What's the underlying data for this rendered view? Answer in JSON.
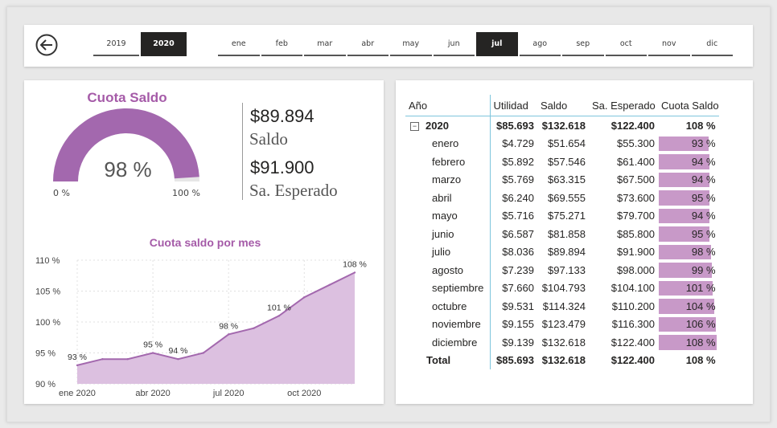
{
  "years": [
    {
      "label": "2019",
      "selected": false
    },
    {
      "label": "2020",
      "selected": true
    }
  ],
  "months": [
    {
      "label": "ene",
      "selected": false
    },
    {
      "label": "feb",
      "selected": false
    },
    {
      "label": "mar",
      "selected": false
    },
    {
      "label": "abr",
      "selected": false
    },
    {
      "label": "may",
      "selected": false
    },
    {
      "label": "jun",
      "selected": false
    },
    {
      "label": "jul",
      "selected": true
    },
    {
      "label": "ago",
      "selected": false
    },
    {
      "label": "sep",
      "selected": false
    },
    {
      "label": "oct",
      "selected": false
    },
    {
      "label": "nov",
      "selected": false
    },
    {
      "label": "dic",
      "selected": false
    }
  ],
  "gauge": {
    "title": "Cuota Saldo",
    "value_label": "98 %",
    "value": 0.98,
    "min_label": "0 %",
    "max_label": "100 %",
    "color": "#a368ae"
  },
  "kpis": [
    {
      "value": "$89.894",
      "label": "Saldo"
    },
    {
      "value": "$91.900",
      "label": "Sa. Esperado"
    }
  ],
  "chart_data": {
    "type": "area",
    "title": "Cuota saldo por mes",
    "x": [
      "2020-01",
      "2020-02",
      "2020-03",
      "2020-04",
      "2020-05",
      "2020-06",
      "2020-07",
      "2020-08",
      "2020-09",
      "2020-10",
      "2020-11",
      "2020-12"
    ],
    "values": [
      93,
      94,
      94,
      95,
      94,
      95,
      98,
      99,
      101,
      104,
      106,
      108
    ],
    "point_labels": [
      "93 %",
      "",
      "",
      "95 %",
      "94 %",
      "",
      "98 %",
      "",
      "101 %",
      "",
      "",
      "108 %"
    ],
    "ylim": [
      90,
      110
    ],
    "yticks": [
      90,
      95,
      100,
      105,
      110
    ],
    "ytick_labels": [
      "90 %",
      "95 %",
      "100 %",
      "105 %",
      "110 %"
    ],
    "xtick_labels": [
      "ene 2020",
      "abr 2020",
      "jul 2020",
      "oct 2020"
    ],
    "xtick_index": [
      0,
      3,
      6,
      9
    ],
    "grid": true,
    "line_color": "#a368ae",
    "fill_color": "#dcc0e0"
  },
  "table": {
    "headers": [
      "Año",
      "Utilidad",
      "Saldo",
      "Sa. Esperado",
      "Cuota Saldo"
    ],
    "year_row": {
      "label": "2020",
      "expand_icon": "minus-box-icon",
      "utilidad": "$85.693",
      "saldo": "$132.618",
      "esperado": "$122.400",
      "cuota": "108 %"
    },
    "rows": [
      {
        "mes": "enero",
        "utilidad": "$4.729",
        "saldo": "$51.654",
        "esperado": "$55.300",
        "cuota": "93 %",
        "pct": 93
      },
      {
        "mes": "febrero",
        "utilidad": "$5.892",
        "saldo": "$57.546",
        "esperado": "$61.400",
        "cuota": "94 %",
        "pct": 94
      },
      {
        "mes": "marzo",
        "utilidad": "$5.769",
        "saldo": "$63.315",
        "esperado": "$67.500",
        "cuota": "94 %",
        "pct": 94
      },
      {
        "mes": "abril",
        "utilidad": "$6.240",
        "saldo": "$69.555",
        "esperado": "$73.600",
        "cuota": "95 %",
        "pct": 95
      },
      {
        "mes": "mayo",
        "utilidad": "$5.716",
        "saldo": "$75.271",
        "esperado": "$79.700",
        "cuota": "94 %",
        "pct": 94
      },
      {
        "mes": "junio",
        "utilidad": "$6.587",
        "saldo": "$81.858",
        "esperado": "$85.800",
        "cuota": "95 %",
        "pct": 95
      },
      {
        "mes": "julio",
        "utilidad": "$8.036",
        "saldo": "$89.894",
        "esperado": "$91.900",
        "cuota": "98 %",
        "pct": 98
      },
      {
        "mes": "agosto",
        "utilidad": "$7.239",
        "saldo": "$97.133",
        "esperado": "$98.000",
        "cuota": "99 %",
        "pct": 99
      },
      {
        "mes": "septiembre",
        "utilidad": "$7.660",
        "saldo": "$104.793",
        "esperado": "$104.100",
        "cuota": "101 %",
        "pct": 101
      },
      {
        "mes": "octubre",
        "utilidad": "$9.531",
        "saldo": "$114.324",
        "esperado": "$110.200",
        "cuota": "104 %",
        "pct": 104
      },
      {
        "mes": "noviembre",
        "utilidad": "$9.155",
        "saldo": "$123.479",
        "esperado": "$116.300",
        "cuota": "106 %",
        "pct": 106
      },
      {
        "mes": "diciembre",
        "utilidad": "$9.139",
        "saldo": "$132.618",
        "esperado": "$122.400",
        "cuota": "108 %",
        "pct": 108
      }
    ],
    "total_row": {
      "label": "Total",
      "utilidad": "$85.693",
      "saldo": "$132.618",
      "esperado": "$122.400",
      "cuota": "108 %"
    },
    "bar_color": "#c899c8",
    "bar_max_pct": 108
  }
}
